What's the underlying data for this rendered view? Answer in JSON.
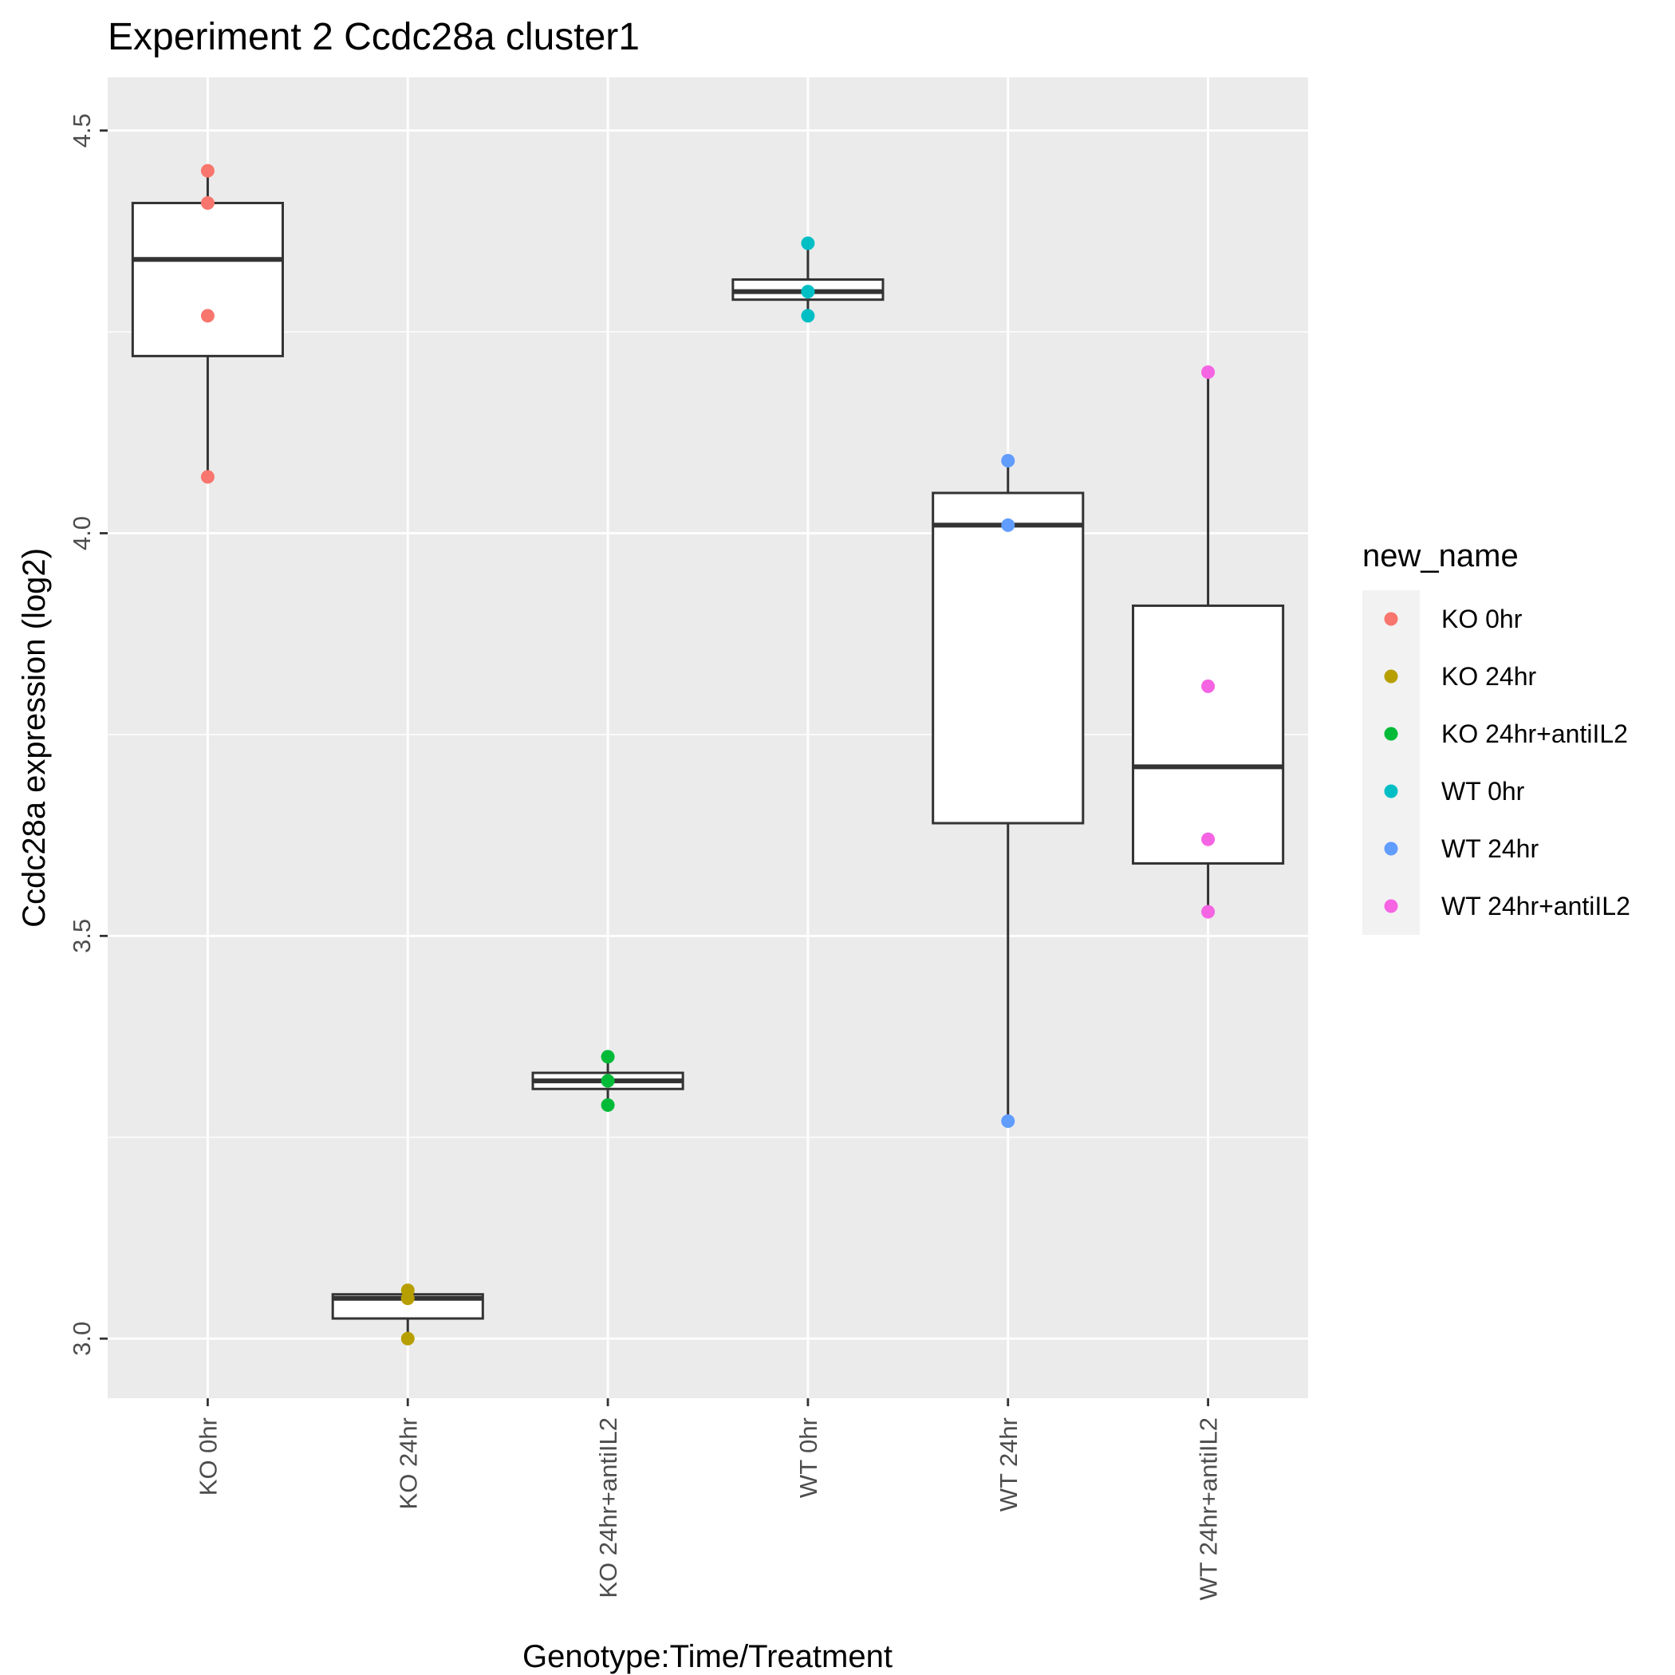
{
  "chart_data": {
    "type": "box",
    "title": "Experiment 2 Ccdc28a cluster1",
    "xlabel": "Genotype:Time/Treatment",
    "ylabel": "Ccdc28a expression (log2)",
    "ylim": [
      2.926,
      4.566
    ],
    "y_ticks": [
      3.0,
      3.5,
      4.0,
      4.5
    ],
    "y_tick_labels": [
      "3.0",
      "3.5",
      "4.0",
      "4.5"
    ],
    "grid": true,
    "legend": {
      "title": "new_name",
      "position": "right"
    },
    "categories": [
      "KO 0hr",
      "KO 24hr",
      "KO 24hr+antiIL2",
      "WT 0hr",
      "WT 24hr",
      "WT 24hr+antiIL2"
    ],
    "series": [
      {
        "name": "KO 0hr",
        "color": "#F8766D",
        "box": {
          "min": 4.07,
          "q1": 4.22,
          "median": 4.34,
          "q3": 4.41,
          "max": 4.45
        },
        "points": [
          4.45,
          4.41,
          4.27,
          4.07
        ]
      },
      {
        "name": "KO 24hr",
        "color": "#B79F00",
        "box": {
          "min": 3.0,
          "q1": 3.025,
          "median": 3.05,
          "q3": 3.055,
          "max": 3.06
        },
        "points": [
          3.06,
          3.05,
          3.0
        ]
      },
      {
        "name": "KO 24hr+antiIL2",
        "color": "#00BA38",
        "box": {
          "min": 3.29,
          "q1": 3.31,
          "median": 3.32,
          "q3": 3.33,
          "max": 3.35
        },
        "points": [
          3.35,
          3.32,
          3.29
        ]
      },
      {
        "name": "WT 0hr",
        "color": "#00BFC4",
        "box": {
          "min": 4.27,
          "q1": 4.29,
          "median": 4.3,
          "q3": 4.315,
          "max": 4.36
        },
        "points": [
          4.36,
          4.3,
          4.27
        ]
      },
      {
        "name": "WT 24hr",
        "color": "#619CFF",
        "box": {
          "min": 3.27,
          "q1": 3.64,
          "median": 4.01,
          "q3": 4.05,
          "max": 4.09
        },
        "points": [
          4.09,
          4.01,
          3.27
        ]
      },
      {
        "name": "WT 24hr+antiIL2",
        "color": "#F564E3",
        "box": {
          "min": 3.53,
          "q1": 3.59,
          "median": 3.71,
          "q3": 3.91,
          "max": 4.2
        },
        "points": [
          4.2,
          3.81,
          3.62,
          3.53
        ]
      }
    ]
  }
}
